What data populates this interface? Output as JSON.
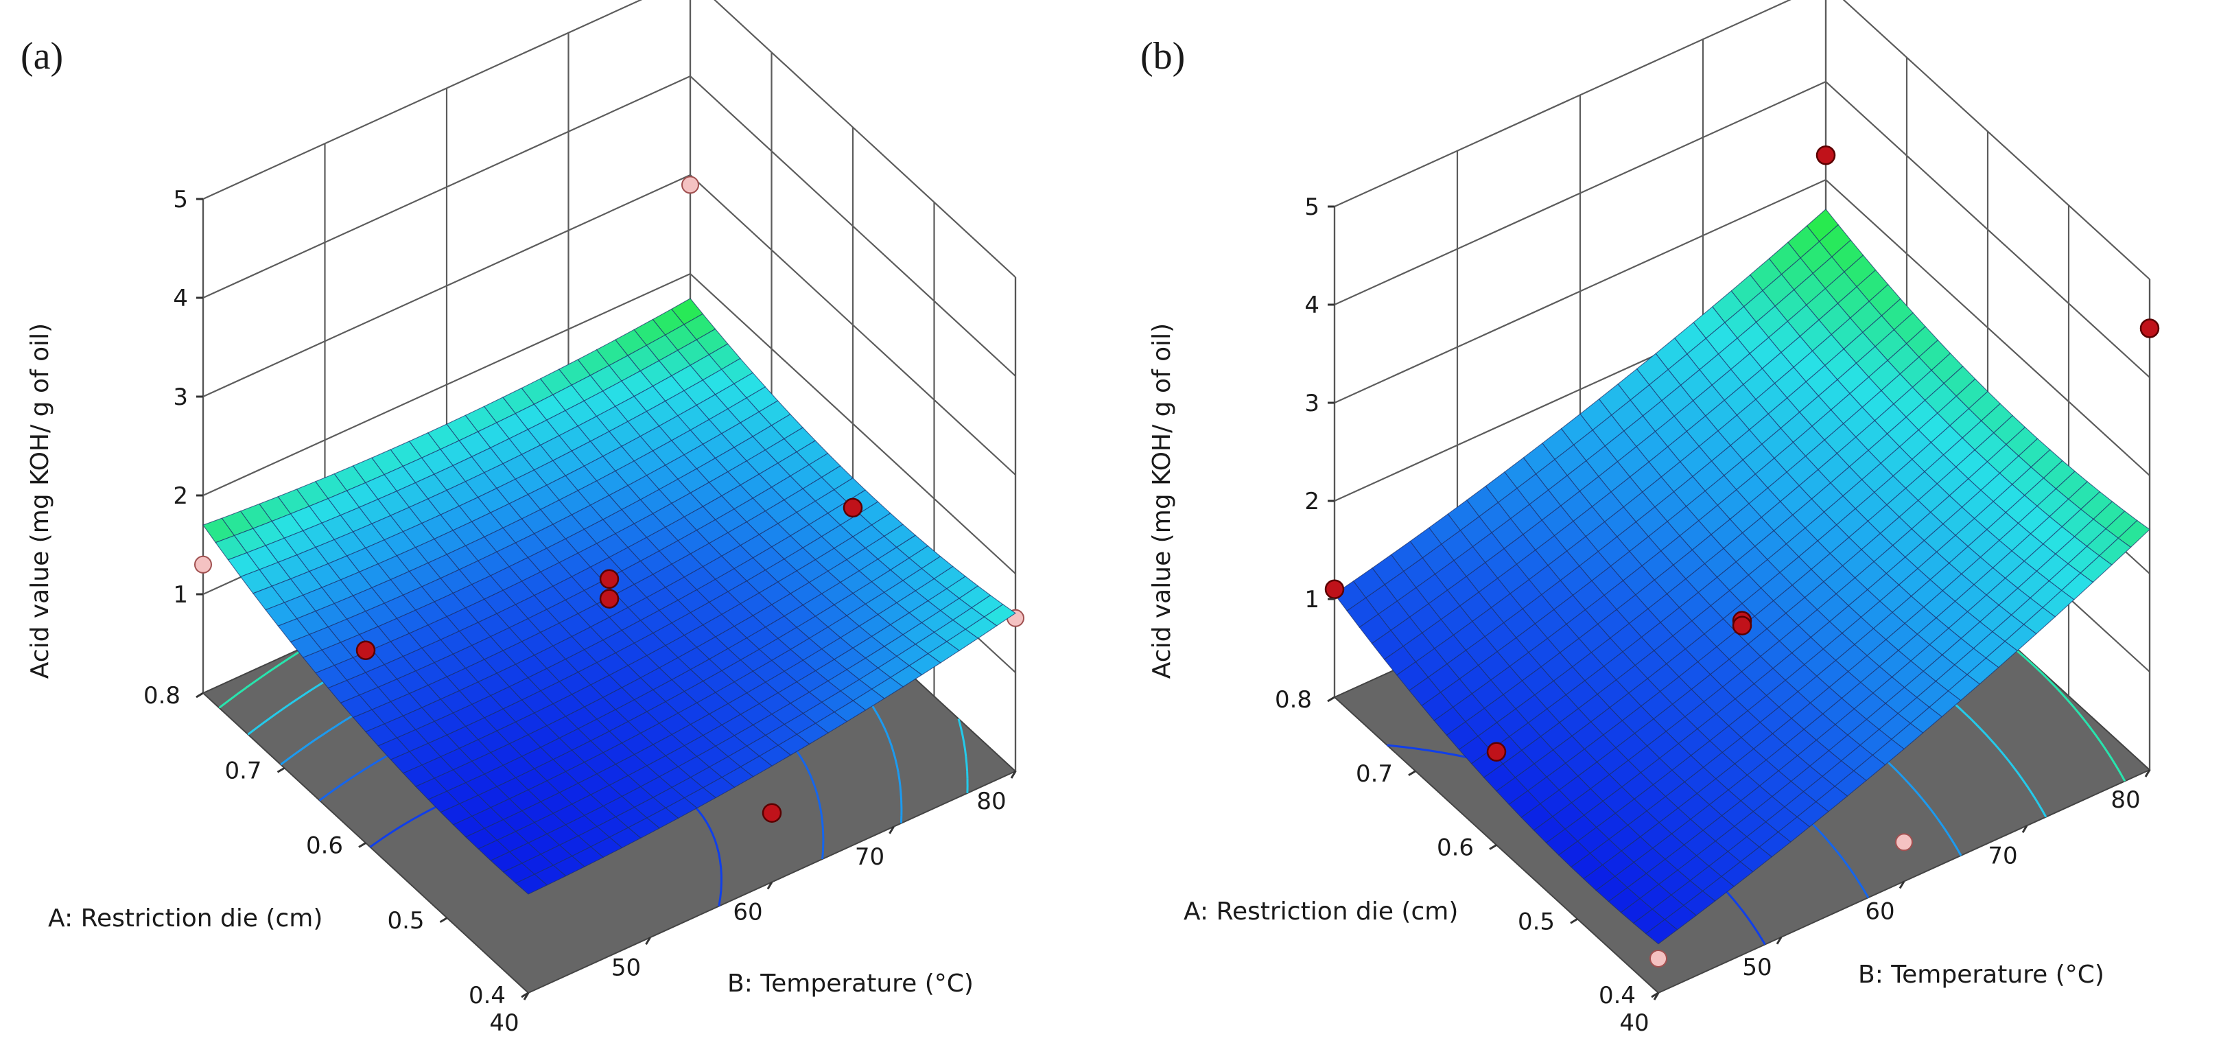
{
  "chart_data": [
    {
      "type": "surface",
      "panel_label": "(a)",
      "zlabel": "Acid value (mg KOH/ g of oil)",
      "xlabel": "A: Restriction die (cm)",
      "ylabel": "B: Temperature (°C)",
      "x_ticks": [
        "0.8",
        "0.7",
        "0.6",
        "0.5",
        "0.4"
      ],
      "y_ticks": [
        "40",
        "50",
        "60",
        "70",
        "80"
      ],
      "z_ticks": [
        "1",
        "2",
        "3",
        "4",
        "5"
      ],
      "xlim": [
        0.4,
        0.8
      ],
      "ylim": [
        40,
        80
      ],
      "zlim": [
        0,
        5
      ],
      "corner_values": {
        "A0.8_B40": 1.7,
        "A0.4_B40": 1.0,
        "A0.8_B80": 1.75,
        "A0.4_B80": 1.6
      },
      "design_points": [
        {
          "A": 0.8,
          "B": 40,
          "value": 1.3,
          "above_surface": false
        },
        {
          "A": 0.8,
          "B": 80,
          "value": 2.9,
          "above_surface": false
        },
        {
          "A": 0.6,
          "B": 60,
          "value": 1.55,
          "above_surface": true
        },
        {
          "A": 0.6,
          "B": 60,
          "value": 1.35,
          "above_surface": true
        },
        {
          "A": 0.4,
          "B": 80,
          "value": 1.55,
          "above_surface": false
        },
        {
          "A": 0.6,
          "B": 40,
          "value": 1.95,
          "above_surface": true
        },
        {
          "A": 0.4,
          "B": 60,
          "value": 0.7,
          "above_surface": true
        },
        {
          "A": 0.6,
          "B": 80,
          "value": 1.15,
          "above_surface": true
        }
      ]
    },
    {
      "type": "surface",
      "panel_label": "(b)",
      "zlabel": "Acid value (mg KOH/ g of oil)",
      "xlabel": "A: Restriction die (cm)",
      "ylabel": "B: Temperature (°C)",
      "x_ticks": [
        "0.8",
        "0.7",
        "0.6",
        "0.5",
        "0.4"
      ],
      "y_ticks": [
        "40",
        "50",
        "60",
        "70",
        "80"
      ],
      "z_ticks": [
        "1",
        "2",
        "3",
        "4",
        "5"
      ],
      "xlim": [
        0.4,
        0.8
      ],
      "ylim": [
        40,
        80
      ],
      "zlim": [
        0,
        5
      ],
      "corner_values": {
        "A0.8_B40": 1.05,
        "A0.4_B40": 0.5,
        "A0.8_B80": 2.7,
        "A0.4_B80": 2.45
      },
      "design_points": [
        {
          "A": 0.8,
          "B": 40,
          "value": 1.1,
          "above_surface": true
        },
        {
          "A": 0.8,
          "B": 80,
          "value": 3.25,
          "above_surface": true
        },
        {
          "A": 0.4,
          "B": 80,
          "value": 4.5,
          "above_surface": true
        },
        {
          "A": 0.6,
          "B": 60,
          "value": 1.15,
          "above_surface": true
        },
        {
          "A": 0.6,
          "B": 60,
          "value": 1.1,
          "above_surface": true
        },
        {
          "A": 0.6,
          "B": 40,
          "value": 0.95,
          "above_surface": true
        },
        {
          "A": 0.4,
          "B": 40,
          "value": 0.35,
          "above_surface": false
        },
        {
          "A": 0.4,
          "B": 60,
          "value": 0.4,
          "above_surface": false
        }
      ]
    }
  ]
}
